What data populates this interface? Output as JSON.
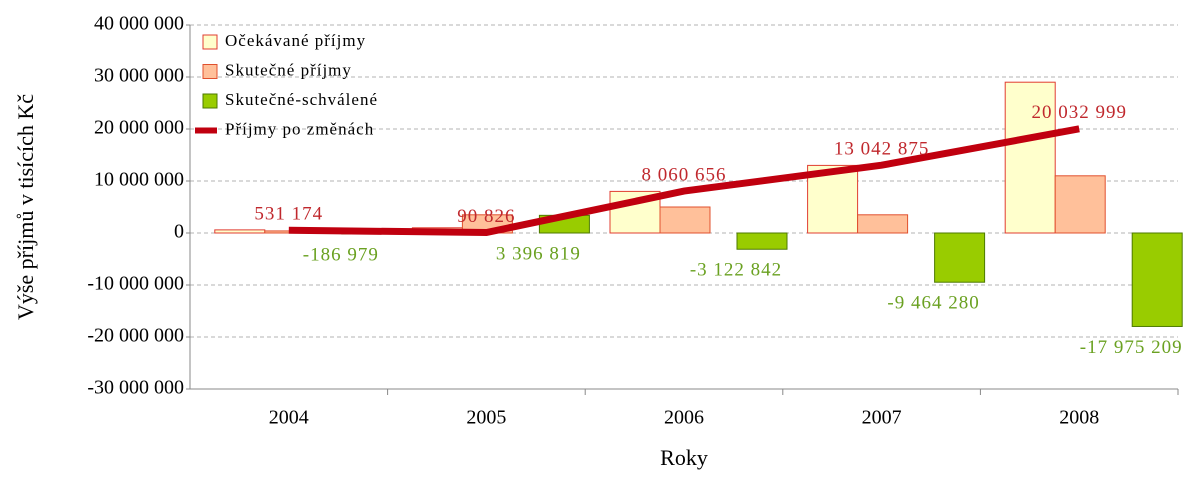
{
  "chart_data": {
    "type": "bar",
    "y_label": "Výše příjmů v tisících Kč",
    "x_label": "Roky",
    "categories": [
      "2004",
      "2005",
      "2006",
      "2007",
      "2008"
    ],
    "series": [
      {
        "name": "Očekávané příjmy",
        "type": "bar",
        "color": "#ffffcc",
        "border": "#e03c31",
        "values": [
          600000,
          1000000,
          8000000,
          13000000,
          29000000
        ]
      },
      {
        "name": "Skutečné příjmy",
        "type": "bar",
        "color": "#ffc09a",
        "border": "#e0502e",
        "values": [
          400000,
          3500000,
          5000000,
          3500000,
          11000000
        ]
      },
      {
        "name": "Skutečné-schválené",
        "type": "bar",
        "color": "#99cc00",
        "border": "#4d7a00",
        "label_color": "#6aa121",
        "values": [
          -186979,
          3396819,
          -3122842,
          -9464280,
          -17975209
        ],
        "value_labels": [
          "-186 979",
          "3 396 819",
          "-3 122 842",
          "-9 464 280",
          "-17 975 209"
        ]
      },
      {
        "name": "Příjmy po změnách",
        "type": "line",
        "color": "#c0000f",
        "label_color": "#c0282d",
        "values": [
          531174,
          90826,
          8060656,
          13042875,
          20032999
        ],
        "value_labels": [
          "531 174",
          "90 826",
          "8 060 656",
          "13 042 875",
          "20 032 999"
        ]
      }
    ],
    "ylim": [
      -30000000,
      40000000
    ],
    "yticks": [
      {
        "value": -30000000,
        "label": "-30 000 000"
      },
      {
        "value": -20000000,
        "label": "-20 000 000"
      },
      {
        "value": -10000000,
        "label": "-10 000 000"
      },
      0,
      {
        "value": 10000000,
        "label": "10 000 000"
      },
      {
        "value": 20000000,
        "label": "20 000 000"
      },
      {
        "value": 30000000,
        "label": "30 000 000"
      },
      {
        "value": 40000000,
        "label": "40 000 000"
      }
    ],
    "grid": true,
    "legend": "top-left"
  }
}
